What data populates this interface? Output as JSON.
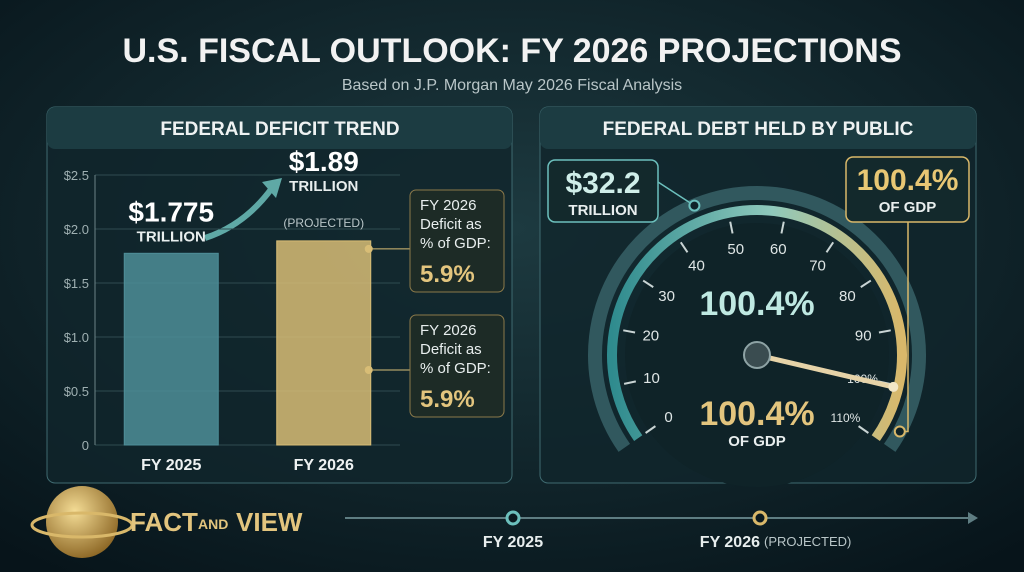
{
  "header": {
    "title": "U.S. FISCAL OUTLOOK: FY 2026 PROJECTIONS",
    "subtitle": "Based on J.P. Morgan May 2026 Fiscal Analysis"
  },
  "chart_data": [
    {
      "type": "bar",
      "title": "FEDERAL DEFICIT TREND",
      "categories": [
        "FY 2025",
        "FY 2026"
      ],
      "values": [
        1.775,
        1.89
      ],
      "value_labels": [
        "$1.775",
        "$1.89"
      ],
      "unit_labels": [
        "TRILLION",
        "TRILLION"
      ],
      "projected_note": "(PROJECTED)",
      "colors": [
        "#4e8e98",
        "#d8bd76"
      ],
      "ylim": [
        0,
        2.5
      ],
      "yticks": [
        0,
        {
          "value": 0.5,
          "label": "$0.5"
        },
        {
          "value": 1.0,
          "label": "$1.0"
        },
        {
          "value": 1.5,
          "label": "$1.5"
        },
        {
          "value": 2.0,
          "label": "$2.0"
        },
        {
          "value": 2.5,
          "label": "$2.5"
        }
      ],
      "annotations": [
        {
          "lines": [
            "FY 2026",
            "Deficit as",
            "% of GDP:"
          ],
          "value": "5.9%"
        },
        {
          "lines": [
            "FY 2026",
            "Deficit as",
            "% of GDP:"
          ],
          "value": "5.9%"
        }
      ]
    },
    {
      "type": "gauge",
      "title": "FEDERAL DEBT HELD BY PUBLIC",
      "value": 100.4,
      "value_label": "100.4%",
      "lim": [
        0,
        110
      ],
      "ticks": [
        0,
        10,
        20,
        30,
        40,
        50,
        60,
        70,
        80,
        90,
        {
          "value": 100,
          "label": "100%"
        },
        {
          "value": 110,
          "label": "110%"
        }
      ],
      "callouts": [
        {
          "text": "$32.2",
          "sub": "TRILLION"
        },
        {
          "text": "100.4%",
          "sub": "OF GDP"
        },
        {
          "text": "100.4%",
          "sub": "OF GDP"
        }
      ]
    }
  ],
  "timeline": [
    {
      "label": "FY 2025"
    },
    {
      "label": "FY 2026",
      "note": "(PROJECTED)"
    }
  ],
  "logo": {
    "word1": "FACT",
    "word2": "AND",
    "word3": "VIEW"
  }
}
